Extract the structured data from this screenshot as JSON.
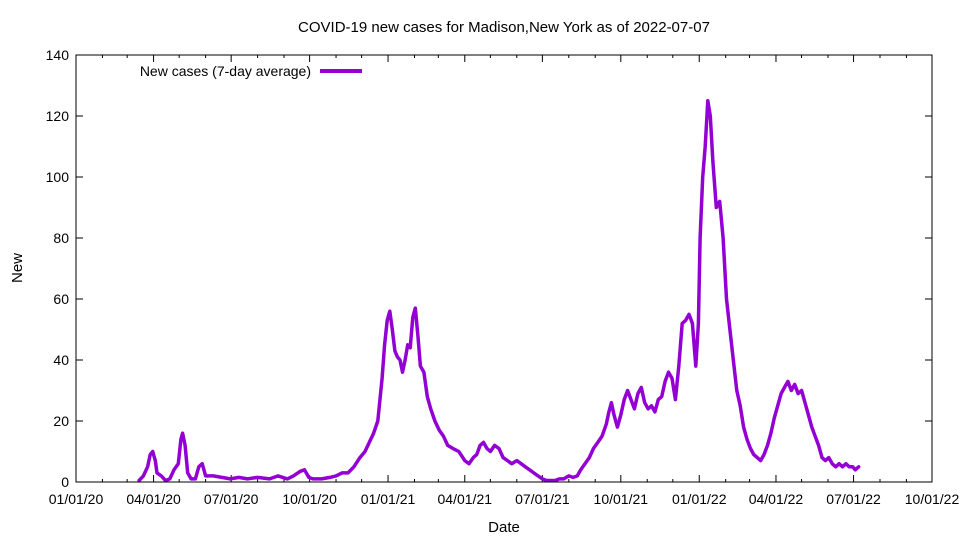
{
  "chart_data": {
    "type": "line",
    "title": "COVID-19 new cases for Madison,New York as of 2022-07-07",
    "xlabel": "Date",
    "ylabel": "New",
    "xlim": [
      "2020-01-01",
      "2022-10-01"
    ],
    "ylim": [
      0,
      140
    ],
    "x_ticks": [
      "01/01/20",
      "04/01/20",
      "07/01/20",
      "10/01/20",
      "01/01/21",
      "04/01/21",
      "07/01/21",
      "10/01/21",
      "01/01/22",
      "04/01/22",
      "07/01/22",
      "10/01/22"
    ],
    "y_ticks": [
      0,
      20,
      40,
      60,
      80,
      100,
      120,
      140
    ],
    "grid": false,
    "legend_position": "top-left",
    "series": [
      {
        "name": "New cases (7-day average)",
        "color": "#9400d3",
        "points": [
          [
            "2020-03-15",
            0.5
          ],
          [
            "2020-03-20",
            2
          ],
          [
            "2020-03-25",
            5
          ],
          [
            "2020-03-28",
            9
          ],
          [
            "2020-03-31",
            10
          ],
          [
            "2020-04-03",
            7
          ],
          [
            "2020-04-05",
            3
          ],
          [
            "2020-04-10",
            2
          ],
          [
            "2020-04-15",
            0.5
          ],
          [
            "2020-04-20",
            1
          ],
          [
            "2020-04-25",
            4
          ],
          [
            "2020-04-30",
            6
          ],
          [
            "2020-05-03",
            14
          ],
          [
            "2020-05-05",
            16
          ],
          [
            "2020-05-08",
            12
          ],
          [
            "2020-05-11",
            3
          ],
          [
            "2020-05-15",
            1
          ],
          [
            "2020-05-20",
            1
          ],
          [
            "2020-05-24",
            5
          ],
          [
            "2020-05-28",
            6
          ],
          [
            "2020-06-01",
            2
          ],
          [
            "2020-06-10",
            2
          ],
          [
            "2020-06-20",
            1.5
          ],
          [
            "2020-06-30",
            1
          ],
          [
            "2020-07-10",
            1.5
          ],
          [
            "2020-07-20",
            1
          ],
          [
            "2020-08-01",
            1.5
          ],
          [
            "2020-08-15",
            1
          ],
          [
            "2020-08-25",
            2
          ],
          [
            "2020-09-05",
            1
          ],
          [
            "2020-09-12",
            2
          ],
          [
            "2020-09-20",
            3.5
          ],
          [
            "2020-09-25",
            4
          ],
          [
            "2020-09-30",
            1.5
          ],
          [
            "2020-10-05",
            1
          ],
          [
            "2020-10-15",
            1
          ],
          [
            "2020-10-25",
            1.5
          ],
          [
            "2020-11-01",
            2
          ],
          [
            "2020-11-08",
            3
          ],
          [
            "2020-11-15",
            3
          ],
          [
            "2020-11-22",
            5
          ],
          [
            "2020-11-29",
            8
          ],
          [
            "2020-12-05",
            10
          ],
          [
            "2020-12-10",
            13
          ],
          [
            "2020-12-15",
            16
          ],
          [
            "2020-12-20",
            20
          ],
          [
            "2020-12-25",
            34
          ],
          [
            "2020-12-28",
            45
          ],
          [
            "2020-12-31",
            53
          ],
          [
            "2021-01-03",
            56
          ],
          [
            "2021-01-06",
            50
          ],
          [
            "2021-01-09",
            43
          ],
          [
            "2021-01-12",
            41
          ],
          [
            "2021-01-15",
            40
          ],
          [
            "2021-01-18",
            36
          ],
          [
            "2021-01-21",
            40
          ],
          [
            "2021-01-24",
            45
          ],
          [
            "2021-01-27",
            44
          ],
          [
            "2021-01-30",
            54
          ],
          [
            "2021-02-02",
            57
          ],
          [
            "2021-02-05",
            48
          ],
          [
            "2021-02-08",
            38
          ],
          [
            "2021-02-12",
            36
          ],
          [
            "2021-02-16",
            28
          ],
          [
            "2021-02-20",
            24
          ],
          [
            "2021-02-25",
            20
          ],
          [
            "2021-03-02",
            17
          ],
          [
            "2021-03-07",
            15
          ],
          [
            "2021-03-12",
            12
          ],
          [
            "2021-03-18",
            11
          ],
          [
            "2021-03-25",
            10
          ],
          [
            "2021-04-01",
            7
          ],
          [
            "2021-04-06",
            6
          ],
          [
            "2021-04-11",
            8
          ],
          [
            "2021-04-15",
            9
          ],
          [
            "2021-04-19",
            12
          ],
          [
            "2021-04-23",
            13
          ],
          [
            "2021-04-27",
            11
          ],
          [
            "2021-05-01",
            10
          ],
          [
            "2021-05-06",
            12
          ],
          [
            "2021-05-11",
            11
          ],
          [
            "2021-05-16",
            8
          ],
          [
            "2021-05-21",
            7
          ],
          [
            "2021-05-26",
            6
          ],
          [
            "2021-06-01",
            7
          ],
          [
            "2021-06-06",
            6
          ],
          [
            "2021-06-11",
            5
          ],
          [
            "2021-06-16",
            4
          ],
          [
            "2021-06-21",
            3
          ],
          [
            "2021-06-26",
            2
          ],
          [
            "2021-07-01",
            1
          ],
          [
            "2021-07-06",
            0.5
          ],
          [
            "2021-07-11",
            0.5
          ],
          [
            "2021-07-16",
            0.5
          ],
          [
            "2021-07-21",
            1
          ],
          [
            "2021-07-26",
            1
          ],
          [
            "2021-08-01",
            2
          ],
          [
            "2021-08-06",
            1.5
          ],
          [
            "2021-08-11",
            2
          ],
          [
            "2021-08-15",
            4
          ],
          [
            "2021-08-20",
            6
          ],
          [
            "2021-08-25",
            8
          ],
          [
            "2021-08-30",
            11
          ],
          [
            "2021-09-04",
            13
          ],
          [
            "2021-09-09",
            15
          ],
          [
            "2021-09-14",
            19
          ],
          [
            "2021-09-17",
            23
          ],
          [
            "2021-09-20",
            26
          ],
          [
            "2021-09-23",
            22
          ],
          [
            "2021-09-27",
            18
          ],
          [
            "2021-10-01",
            22
          ],
          [
            "2021-10-05",
            27
          ],
          [
            "2021-10-09",
            30
          ],
          [
            "2021-10-13",
            27
          ],
          [
            "2021-10-17",
            24
          ],
          [
            "2021-10-21",
            29
          ],
          [
            "2021-10-25",
            31
          ],
          [
            "2021-10-29",
            26
          ],
          [
            "2021-11-02",
            24
          ],
          [
            "2021-11-06",
            25
          ],
          [
            "2021-11-10",
            23
          ],
          [
            "2021-11-14",
            27
          ],
          [
            "2021-11-18",
            28
          ],
          [
            "2021-11-22",
            33
          ],
          [
            "2021-11-26",
            36
          ],
          [
            "2021-11-30",
            34
          ],
          [
            "2021-12-04",
            27
          ],
          [
            "2021-12-08",
            38
          ],
          [
            "2021-12-12",
            52
          ],
          [
            "2021-12-16",
            53
          ],
          [
            "2021-12-20",
            55
          ],
          [
            "2021-12-24",
            52
          ],
          [
            "2021-12-28",
            38
          ],
          [
            "2021-12-31",
            52
          ],
          [
            "2022-01-02",
            80
          ],
          [
            "2022-01-05",
            100
          ],
          [
            "2022-01-08",
            110
          ],
          [
            "2022-01-11",
            125
          ],
          [
            "2022-01-14",
            120
          ],
          [
            "2022-01-17",
            105
          ],
          [
            "2022-01-21",
            90
          ],
          [
            "2022-01-25",
            92
          ],
          [
            "2022-01-29",
            80
          ],
          [
            "2022-02-02",
            60
          ],
          [
            "2022-02-06",
            50
          ],
          [
            "2022-02-10",
            40
          ],
          [
            "2022-02-14",
            30
          ],
          [
            "2022-02-18",
            25
          ],
          [
            "2022-02-22",
            18
          ],
          [
            "2022-02-26",
            14
          ],
          [
            "2022-03-02",
            11
          ],
          [
            "2022-03-06",
            9
          ],
          [
            "2022-03-10",
            8
          ],
          [
            "2022-03-14",
            7
          ],
          [
            "2022-03-18",
            9
          ],
          [
            "2022-03-22",
            12
          ],
          [
            "2022-03-26",
            16
          ],
          [
            "2022-03-30",
            21
          ],
          [
            "2022-04-03",
            25
          ],
          [
            "2022-04-07",
            29
          ],
          [
            "2022-04-11",
            31
          ],
          [
            "2022-04-15",
            33
          ],
          [
            "2022-04-19",
            30
          ],
          [
            "2022-04-23",
            32
          ],
          [
            "2022-04-27",
            29
          ],
          [
            "2022-05-01",
            30
          ],
          [
            "2022-05-05",
            26
          ],
          [
            "2022-05-09",
            22
          ],
          [
            "2022-05-13",
            18
          ],
          [
            "2022-05-17",
            15
          ],
          [
            "2022-05-21",
            12
          ],
          [
            "2022-05-25",
            8
          ],
          [
            "2022-05-29",
            7
          ],
          [
            "2022-06-02",
            8
          ],
          [
            "2022-06-06",
            6
          ],
          [
            "2022-06-10",
            5
          ],
          [
            "2022-06-14",
            6
          ],
          [
            "2022-06-18",
            5
          ],
          [
            "2022-06-22",
            6
          ],
          [
            "2022-06-26",
            5
          ],
          [
            "2022-06-30",
            5
          ],
          [
            "2022-07-03",
            4
          ],
          [
            "2022-07-07",
            5
          ]
        ]
      }
    ]
  }
}
